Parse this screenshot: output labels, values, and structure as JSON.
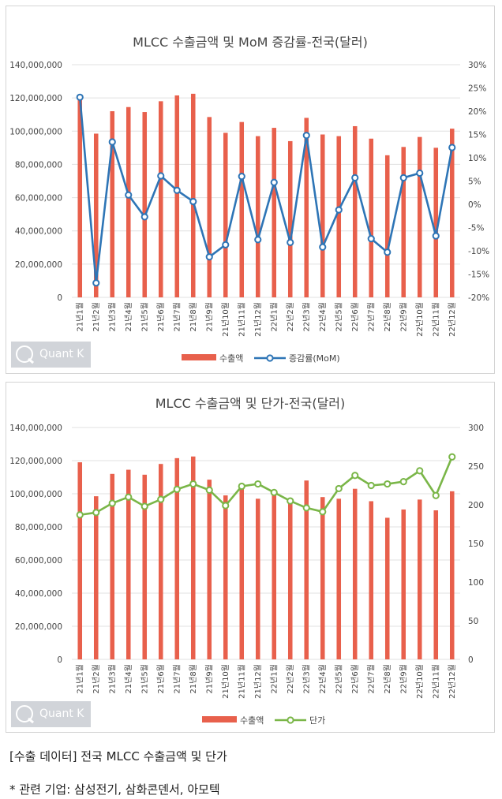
{
  "chart_data": [
    {
      "type": "bar+line",
      "title": "MLCC 수출금액 및 MoM 증감률-전국(달러)",
      "categories": [
        "21년1월",
        "21년2월",
        "21년3월",
        "21년4월",
        "21년5월",
        "21년6월",
        "21년7월",
        "21년8월",
        "21년9월",
        "21년10월",
        "21년11월",
        "21년12월",
        "22년1월",
        "22년2월",
        "22년3월",
        "22년4월",
        "22년5월",
        "22년6월",
        "22년7월",
        "22년8월",
        "22년9월",
        "22년10월",
        "22년11월",
        "22년12월"
      ],
      "y_left_ticks": [
        "0",
        "20,000,000",
        "40,000,000",
        "60,000,000",
        "80,000,000",
        "100,000,000",
        "120,000,000",
        "140,000,000"
      ],
      "y_right_ticks": [
        "-20%",
        "-15%",
        "-10%",
        "-5%",
        "0%",
        "5%",
        "10%",
        "15%",
        "20%",
        "25%",
        "30%"
      ],
      "ylim_left": [
        0,
        140000000
      ],
      "ylim_right": [
        -20,
        30
      ],
      "series": [
        {
          "name": "수출액",
          "type": "bar",
          "axis": "left",
          "color": "#e8604c",
          "values": [
            119000000,
            98500000,
            112000000,
            114500000,
            111500000,
            118000000,
            121500000,
            122500000,
            108500000,
            99000000,
            105500000,
            97000000,
            102000000,
            94000000,
            108000000,
            98000000,
            97000000,
            103000000,
            95500000,
            85500000,
            90500000,
            96500000,
            90000000,
            101500000
          ]
        },
        {
          "name": "증감률(MoM)",
          "type": "line",
          "axis": "right",
          "color": "#2e75b6",
          "values": [
            23.0,
            -16.9,
            13.4,
            2.0,
            -2.7,
            6.1,
            3.0,
            0.6,
            -11.3,
            -8.7,
            6.0,
            -7.6,
            4.7,
            -8.2,
            14.8,
            -9.2,
            -1.2,
            5.7,
            -7.4,
            -10.3,
            5.7,
            6.7,
            -6.8,
            12.2
          ]
        }
      ],
      "legend_position": "bottom",
      "grid": "horizontal"
    },
    {
      "type": "bar+line",
      "title": "MLCC 수출금액 및 단가-전국(달러)",
      "categories": [
        "21년1월",
        "21년2월",
        "21년3월",
        "21년4월",
        "21년5월",
        "21년6월",
        "21년7월",
        "21년8월",
        "21년9월",
        "21년10월",
        "21년11월",
        "21년12월",
        "22년1월",
        "22년2월",
        "22년3월",
        "22년4월",
        "22년5월",
        "22년6월",
        "22년7월",
        "22년8월",
        "22년9월",
        "22년10월",
        "22년11월",
        "22년12월"
      ],
      "y_left_ticks": [
        "0",
        "20,000,000",
        "40,000,000",
        "60,000,000",
        "80,000,000",
        "100,000,000",
        "120,000,000",
        "140,000,000"
      ],
      "y_right_ticks": [
        "0",
        "50",
        "100",
        "150",
        "200",
        "250",
        "300"
      ],
      "ylim_left": [
        0,
        140000000
      ],
      "ylim_right": [
        0,
        300
      ],
      "series": [
        {
          "name": "수출액",
          "type": "bar",
          "axis": "left",
          "color": "#e8604c",
          "values": [
            119000000,
            98500000,
            112000000,
            114500000,
            111500000,
            118000000,
            121500000,
            122500000,
            108500000,
            99000000,
            105500000,
            97000000,
            102000000,
            94000000,
            108000000,
            98000000,
            97000000,
            103000000,
            95500000,
            85500000,
            90500000,
            96500000,
            90000000,
            101500000
          ]
        },
        {
          "name": "단가",
          "type": "line",
          "axis": "right",
          "color": "#7ab648",
          "values": [
            187,
            190,
            202,
            210,
            198,
            207,
            220,
            227,
            219,
            199,
            224,
            227,
            216,
            205,
            196,
            191,
            221,
            238,
            225,
            227,
            230,
            244,
            212,
            262
          ]
        }
      ],
      "legend_position": "bottom",
      "grid": "horizontal"
    }
  ],
  "watermark": {
    "text": "Quant K"
  },
  "captions": {
    "line1": "[수출 데이터] 전국 MLCC 수출금액 및 단가",
    "line2": "* 관련 기업: 삼성전기, 삼화콘덴서, 아모텍"
  }
}
